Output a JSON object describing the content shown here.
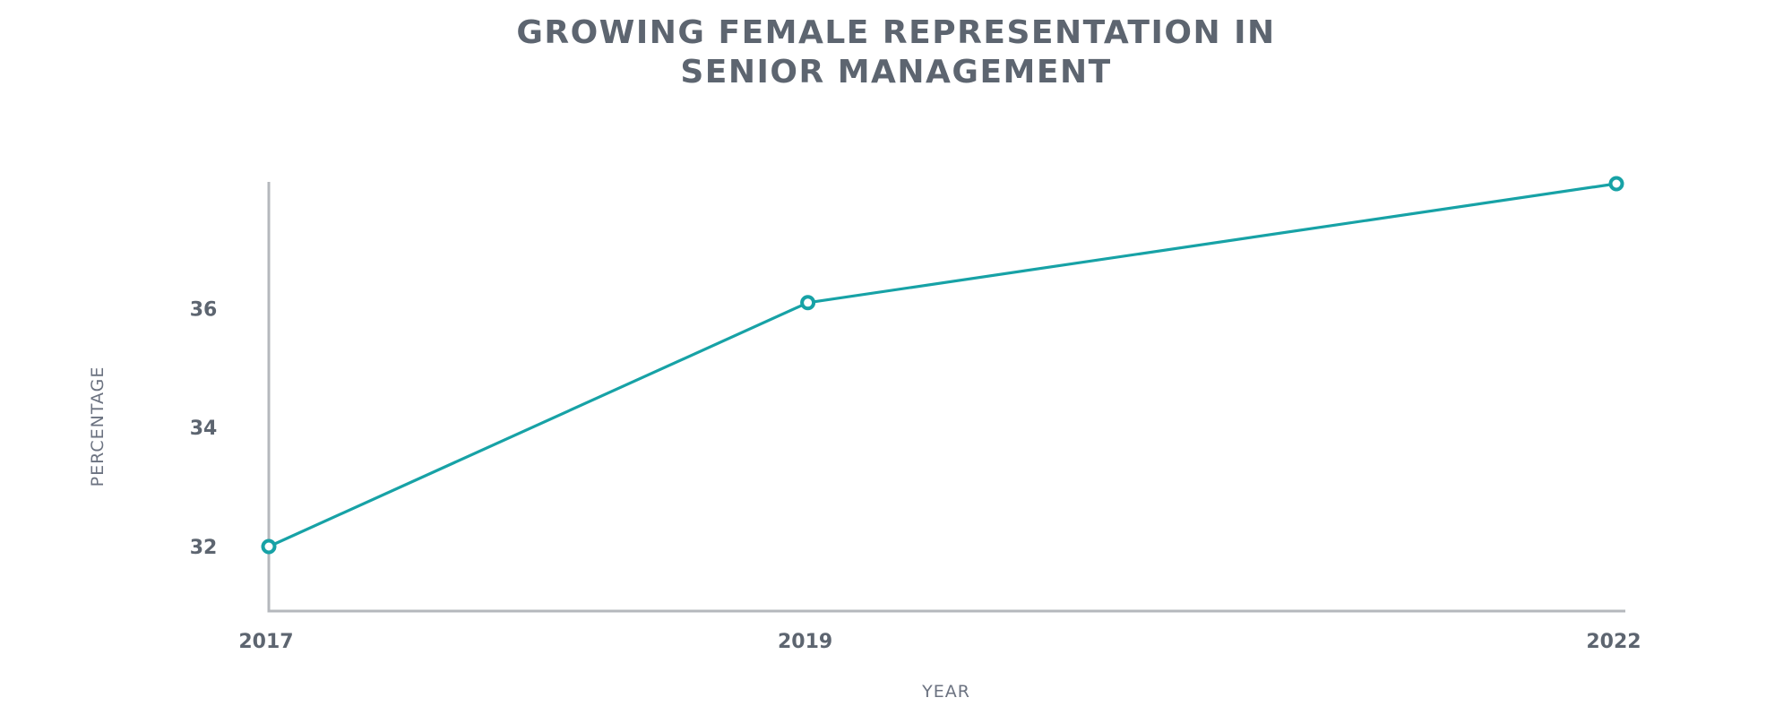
{
  "chart_data": {
    "type": "line",
    "title_lines": [
      "GROWING FEMALE REPRESENTATION IN",
      "SENIOR MANAGEMENT"
    ],
    "xlabel": "YEAR",
    "ylabel": "PERCENTAGE",
    "x": [
      2017,
      2019,
      2022
    ],
    "x_tick_labels": [
      "2017",
      "2019",
      "2022"
    ],
    "y_ticks": [
      32,
      34,
      36
    ],
    "y_tick_labels": [
      "32",
      "34",
      "36"
    ],
    "ylim": [
      31,
      38
    ],
    "series": [
      {
        "values": [
          32.0,
          36.1,
          38.1
        ],
        "color": "#17a2a6"
      }
    ],
    "grid": false,
    "legend": "none"
  }
}
